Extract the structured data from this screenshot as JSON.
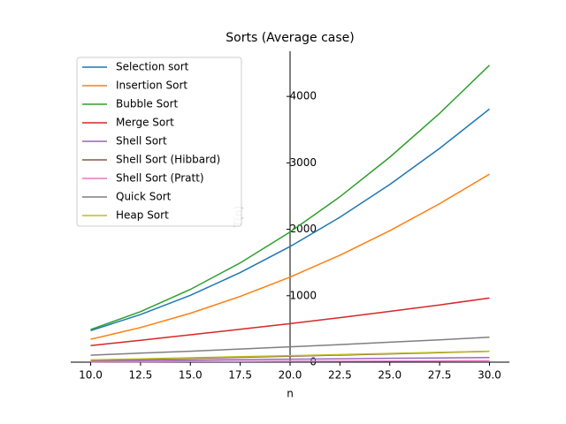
{
  "chart_data": {
    "type": "line",
    "title": "Sorts (Average case)",
    "xlabel": "n",
    "ylabel": "T(n)",
    "x": [
      10,
      12.5,
      15,
      17.5,
      20,
      22.5,
      25,
      27.5,
      30
    ],
    "series": [
      {
        "name": "Selection sort",
        "color": "#1f77b4",
        "values": [
          475,
          716,
          1007,
          1348,
          1740,
          2182,
          2674,
          3217,
          3810
        ]
      },
      {
        "name": "Insertion Sort",
        "color": "#ff7f0e",
        "values": [
          345,
          521,
          736,
          989,
          1280,
          1610,
          1978,
          2385,
          2830
        ]
      },
      {
        "name": "Bubble Sort",
        "color": "#2ca02c",
        "values": [
          490,
          760,
          1095,
          1495,
          1960,
          2490,
          3085,
          3745,
          4470
        ]
      },
      {
        "name": "Merge Sort",
        "color": "#d62728",
        "values": [
          250,
          330,
          412,
          495,
          580,
          670,
          765,
          862,
          965
        ]
      },
      {
        "name": "Shell Sort",
        "color": "#9467bd",
        "values": [
          20,
          26,
          32,
          38,
          45,
          51,
          58,
          64,
          71
        ]
      },
      {
        "name": "Shell Sort (Hibbard)",
        "color": "#8c564b",
        "values": [
          32,
          44,
          58,
          73,
          89,
          107,
          125,
          144,
          164
        ]
      },
      {
        "name": "Shell Sort (Pratt)",
        "color": "#e377c2",
        "values": [
          5,
          7,
          9,
          11,
          13,
          15,
          17,
          19,
          21
        ]
      },
      {
        "name": "Quick Sort",
        "color": "#7f7f7f",
        "values": [
          105,
          135,
          165,
          198,
          232,
          265,
          300,
          337,
          375
        ]
      },
      {
        "name": "Heap Sort",
        "color": "#bcbd22",
        "values": [
          35,
          50,
          66,
          82,
          98,
          115,
          131,
          148,
          165
        ]
      }
    ],
    "xlim": [
      9,
      31
    ],
    "ylim": [
      0,
      4680
    ],
    "xticks": [
      {
        "value": 10,
        "label": "10.0"
      },
      {
        "value": 12.5,
        "label": "12.5"
      },
      {
        "value": 15,
        "label": "15.0"
      },
      {
        "value": 17.5,
        "label": "17.5"
      },
      {
        "value": 20,
        "label": "20.0"
      },
      {
        "value": 22.5,
        "label": "22.5"
      },
      {
        "value": 25,
        "label": "25.0"
      },
      {
        "value": 27.5,
        "label": "27.5"
      },
      {
        "value": 30,
        "label": "30.0"
      }
    ],
    "yticks": [
      0,
      1000,
      2000,
      3000,
      4000
    ],
    "legend": "upper left"
  }
}
